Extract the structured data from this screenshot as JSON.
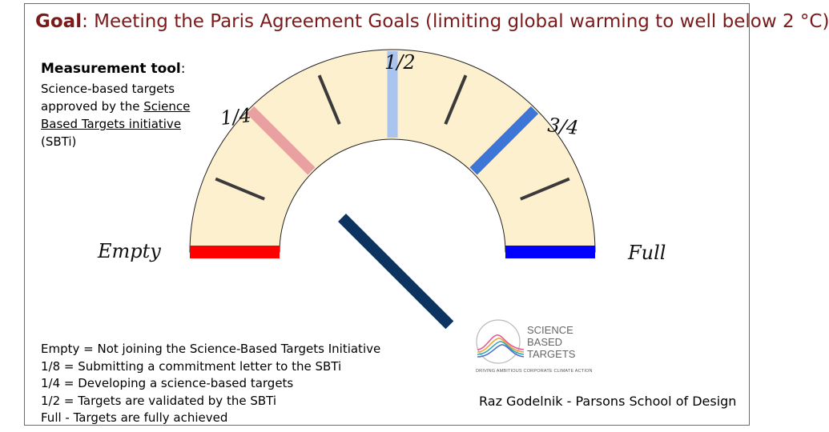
{
  "title": {
    "lead": "Goal",
    "text": ": Meeting the Paris Agreement Goals (limiting global warming to well below 2 °C)"
  },
  "measurement": {
    "heading": "Measurement tool",
    "heading_suffix": ":",
    "line1": "Science-based targets",
    "line2": "approved by the ",
    "link": "Science Based Targets initiative",
    "line3": " (SBTi)"
  },
  "gauge": {
    "labels": {
      "empty": "Empty",
      "quarter": "1/4",
      "half": "1/2",
      "three_quarter": "3/4",
      "full": "Full"
    },
    "needle_fraction": 0.25,
    "colors": {
      "fill": "#fdf0cf",
      "empty": "#ff0000",
      "quarter": "#e8a0a0",
      "half": "#a9c4ef",
      "three_quarter": "#3e75d6",
      "full": "#0000ff",
      "needle": "#0d3460"
    }
  },
  "legend": [
    "Empty = Not joining the Science-Based Targets Initiative",
    "1/8 = Submitting a commitment letter to the SBTi",
    "1/4 = Developing a science-based targets",
    "1/2 = Targets are validated by the SBTi",
    "Full - Targets are fully achieved"
  ],
  "logo": {
    "line1": "SCIENCE",
    "line2": "BASED",
    "line3": "TARGETS",
    "tagline": "DRIVING AMBITIOUS CORPORATE CLIMATE ACTION"
  },
  "credit": "Raz Godelnik - Parsons School of Design"
}
